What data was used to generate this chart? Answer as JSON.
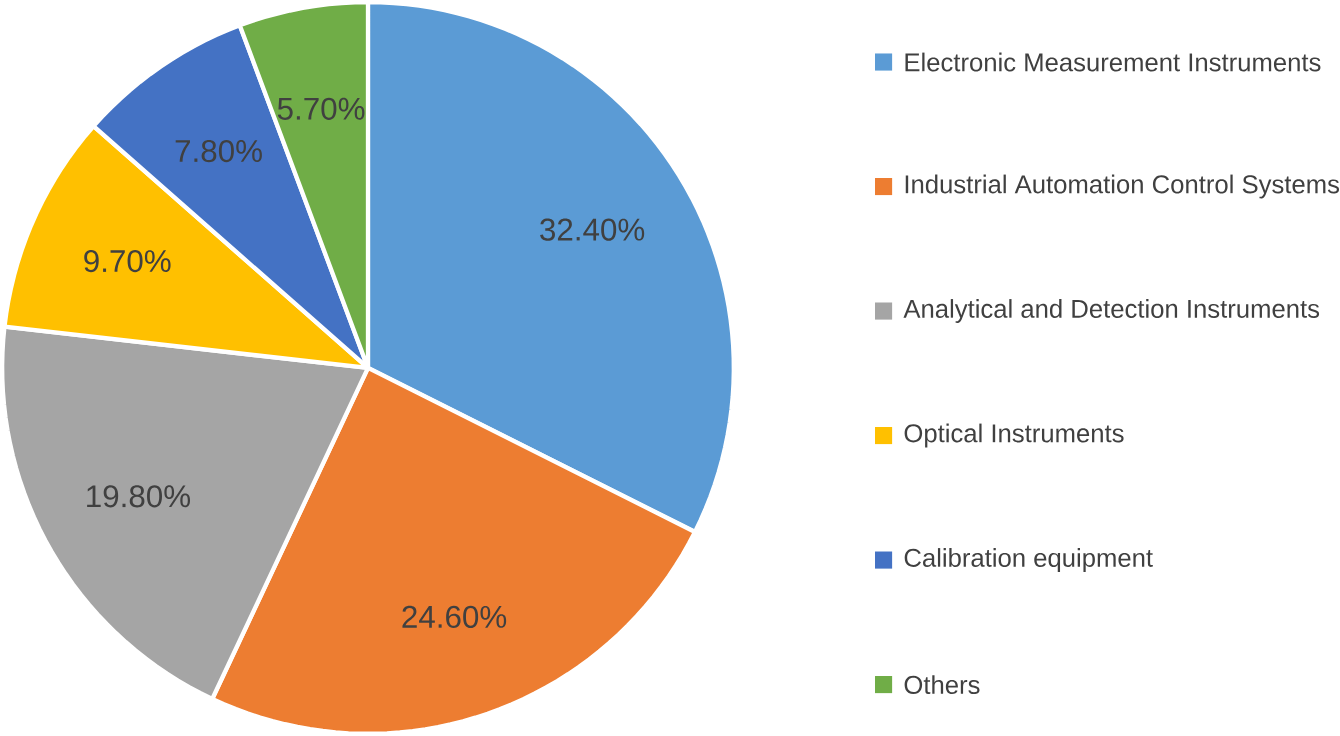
{
  "chart_data": {
    "type": "pie",
    "categories": [
      "Electronic Measurement Instruments",
      "Industrial Automation Control Systems",
      "Analytical and Detection Instruments",
      "Optical Instruments",
      "Calibration equipment",
      "Others"
    ],
    "values": [
      32.4,
      24.6,
      19.8,
      9.7,
      7.8,
      5.7
    ],
    "value_labels": [
      "32.40%",
      "24.60%",
      "19.80%",
      "9.70%",
      "7.80%",
      "5.70%"
    ],
    "colors": [
      "#5b9bd5",
      "#ed7d31",
      "#a5a5a5",
      "#ffc000",
      "#4472c4",
      "#70ad47"
    ],
    "legend": "right"
  }
}
